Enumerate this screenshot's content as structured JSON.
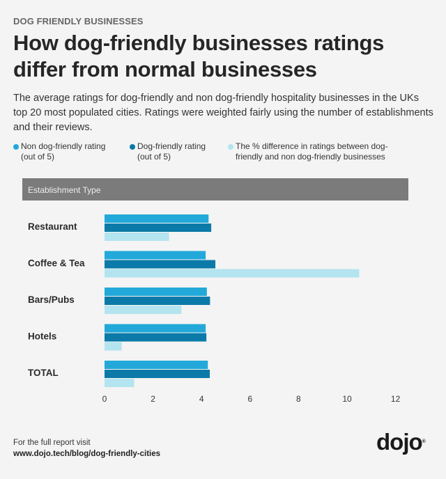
{
  "header": {
    "kicker": "DOG FRIENDLY BUSINESSES",
    "title": "How dog-friendly businesses ratings differ from normal businesses",
    "description": "The average ratings for dog-friendly and non dog-friendly hospitality businesses in the UKs top 20 most populated cities. Ratings were weighted fairly using the number of establishments and their reviews."
  },
  "legend": [
    {
      "label": "Non dog-friendly rating (out of 5)",
      "color": "#22a9d9"
    },
    {
      "label": "Dog-friendly rating (out of 5)",
      "color": "#0b7aa8"
    },
    {
      "label": "The % difference in ratings between dog-friendly and non dog-friendly businesses",
      "color": "#b3e4f0"
    }
  ],
  "table_header": "Establishment Type",
  "chart_data": {
    "type": "bar",
    "orientation": "horizontal",
    "title": "How dog-friendly businesses ratings differ from normal businesses",
    "xlabel": "",
    "ylabel": "Establishment Type",
    "categories": [
      "Restaurant",
      "Coffee & Tea",
      "Bars/Pubs",
      "Hotels",
      "TOTAL"
    ],
    "series": [
      {
        "name": "Non dog-friendly rating (out of 5)",
        "color": "#22a9d9",
        "values": [
          4.29,
          4.17,
          4.22,
          4.17,
          4.26
        ]
      },
      {
        "name": "Dog-friendly rating (out of 5)",
        "color": "#0b7aa8",
        "values": [
          4.4,
          4.57,
          4.35,
          4.2,
          4.34
        ]
      },
      {
        "name": "The % difference in ratings between dog-friendly and non dog-friendly businesses",
        "color": "#b3e4f0",
        "values": [
          2.66,
          10.5,
          3.17,
          0.71,
          1.22
        ]
      }
    ],
    "xticks": [
      0,
      2,
      4,
      6,
      8,
      10,
      12
    ],
    "xlim": [
      0,
      12
    ],
    "grid": false,
    "legend_position": "top"
  },
  "footer": {
    "note": "For the full report visit",
    "url": "www.dojo.tech/blog/dog-friendly-cities"
  },
  "logo": {
    "text": "dojo",
    "mark": "®"
  }
}
